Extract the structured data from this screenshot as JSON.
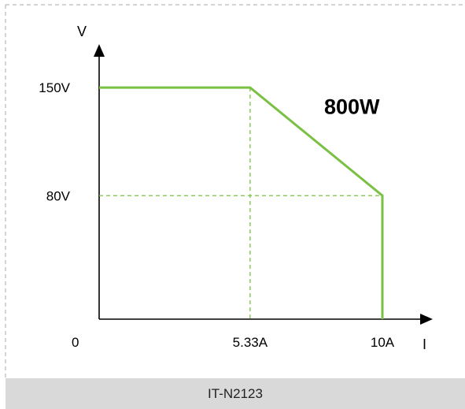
{
  "chart_data": {
    "type": "line",
    "title": "",
    "annotation": "800W",
    "xlabel": "I",
    "ylabel": "V",
    "origin_label": "0",
    "x_ticks": [
      {
        "value": 5.33,
        "label": "5.33A"
      },
      {
        "value": 10,
        "label": "10A"
      }
    ],
    "y_ticks": [
      {
        "value": 80,
        "label": "80V"
      },
      {
        "value": 150,
        "label": "150V"
      }
    ],
    "xlim": [
      0,
      11.5
    ],
    "ylim": [
      0,
      172
    ],
    "series": [
      {
        "x": [
          0,
          5.33,
          10,
          10
        ],
        "y": [
          150,
          150,
          80,
          0
        ]
      }
    ],
    "guides": [
      {
        "from": [
          5.33,
          150
        ],
        "to": [
          5.33,
          0
        ]
      },
      {
        "from": [
          0,
          80
        ],
        "to": [
          10,
          80
        ]
      }
    ],
    "line_color": "#7ac143"
  },
  "footer": {
    "model": "IT-N2123"
  }
}
